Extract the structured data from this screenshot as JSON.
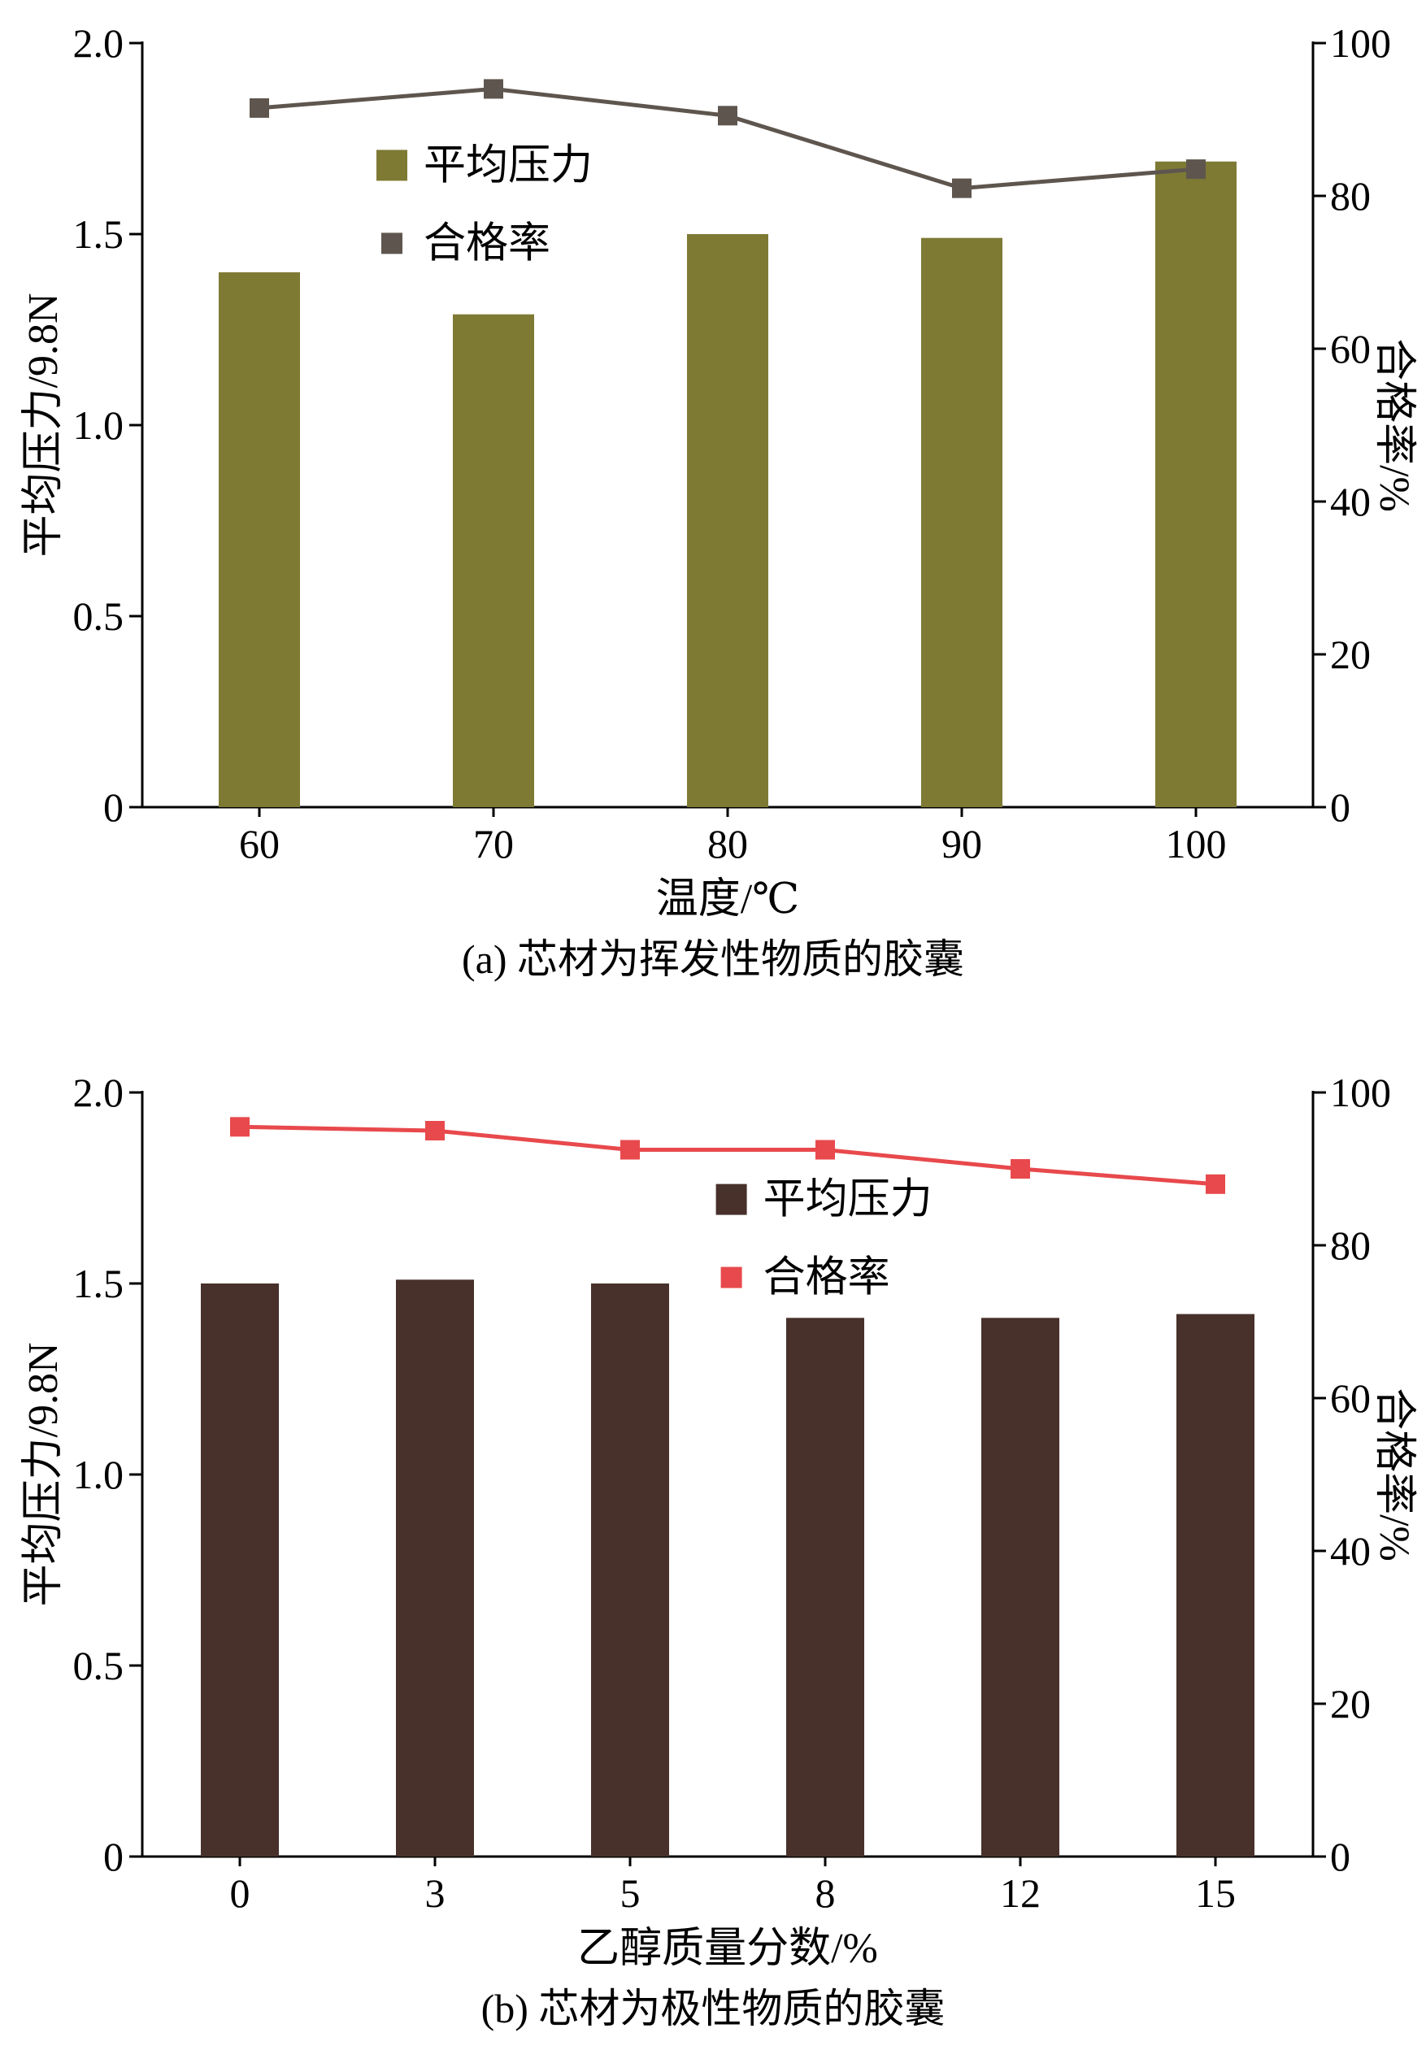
{
  "page": {
    "background": "#ffffff",
    "text_color": "#000000"
  },
  "chart_data": [
    {
      "type": "bar+line",
      "caption": "(a) 芯材为挥发性物质的胶囊",
      "categories": [
        "60",
        "70",
        "80",
        "90",
        "100"
      ],
      "series": [
        {
          "name": "平均压力",
          "type": "bar",
          "axis": "left",
          "color": "#7e7a34",
          "values": [
            1.4,
            1.29,
            1.5,
            1.49,
            1.69
          ]
        },
        {
          "name": "合格率",
          "type": "line",
          "axis": "right",
          "color": "#5e564e",
          "values": [
            91.5,
            94,
            90.5,
            81,
            83.5
          ]
        }
      ],
      "xlabel": "温度/℃",
      "ylabel_left": "平均压力/9.8N",
      "ylabel_right": "合格率/%",
      "ylim_left": [
        0,
        2.0
      ],
      "ylim_right": [
        0,
        100
      ],
      "yticks_left": [
        "0",
        "0.5",
        "1.0",
        "1.5",
        "2.0"
      ],
      "yticks_right": [
        "0",
        "20",
        "40",
        "60",
        "80",
        "100"
      ],
      "grid": "off",
      "legend": {
        "labels": [
          "平均压力",
          "合格率"
        ],
        "position": "inside-upper-left",
        "fx": 0.2,
        "fy": 0.16
      }
    },
    {
      "type": "bar+line",
      "caption": "(b) 芯材为极性物质的胶囊",
      "categories": [
        "0",
        "3",
        "5",
        "8",
        "12",
        "15"
      ],
      "series": [
        {
          "name": "平均压力",
          "type": "bar",
          "axis": "left",
          "color": "#47312a",
          "values": [
            1.5,
            1.51,
            1.5,
            1.41,
            1.41,
            1.42
          ]
        },
        {
          "name": "合格率",
          "type": "line",
          "axis": "right",
          "color": "#e8494c",
          "values": [
            95.5,
            95,
            92.5,
            92.5,
            90,
            88
          ]
        }
      ],
      "xlabel": "乙醇质量分数/%",
      "ylabel_left": "平均压力/9.8N",
      "ylabel_right": "合格率/%",
      "ylim_left": [
        0,
        2.0
      ],
      "ylim_right": [
        0,
        100
      ],
      "yticks_left": [
        "0",
        "0.5",
        "1.0",
        "1.5",
        "2.0"
      ],
      "yticks_right": [
        "0",
        "20",
        "40",
        "60",
        "80",
        "100"
      ],
      "grid": "off",
      "legend": {
        "labels": [
          "平均压力",
          "合格率"
        ],
        "position": "inside-upper-middle",
        "fx": 0.49,
        "fy": 0.14
      }
    }
  ]
}
